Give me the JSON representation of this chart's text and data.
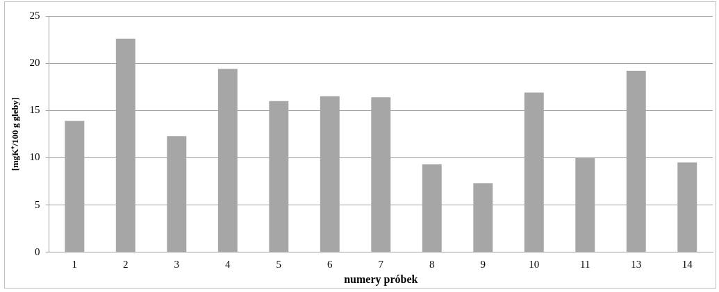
{
  "chart_data": {
    "type": "bar",
    "xlabel": "numery próbek",
    "ylabel": "[mgK⁺/100 g gleby]",
    "categories": [
      "1",
      "2",
      "3",
      "4",
      "5",
      "6",
      "7",
      "8",
      "9",
      "10",
      "11",
      "13",
      "14"
    ],
    "values": [
      13.9,
      22.6,
      12.3,
      19.4,
      16.0,
      16.5,
      16.4,
      9.3,
      7.3,
      16.9,
      10.0,
      19.2,
      9.5
    ],
    "color": "#a6a6a6",
    "ylim": [
      0,
      25
    ],
    "yticks": [
      0,
      5,
      10,
      15,
      20,
      25
    ],
    "grid": "y",
    "legend": false
  }
}
